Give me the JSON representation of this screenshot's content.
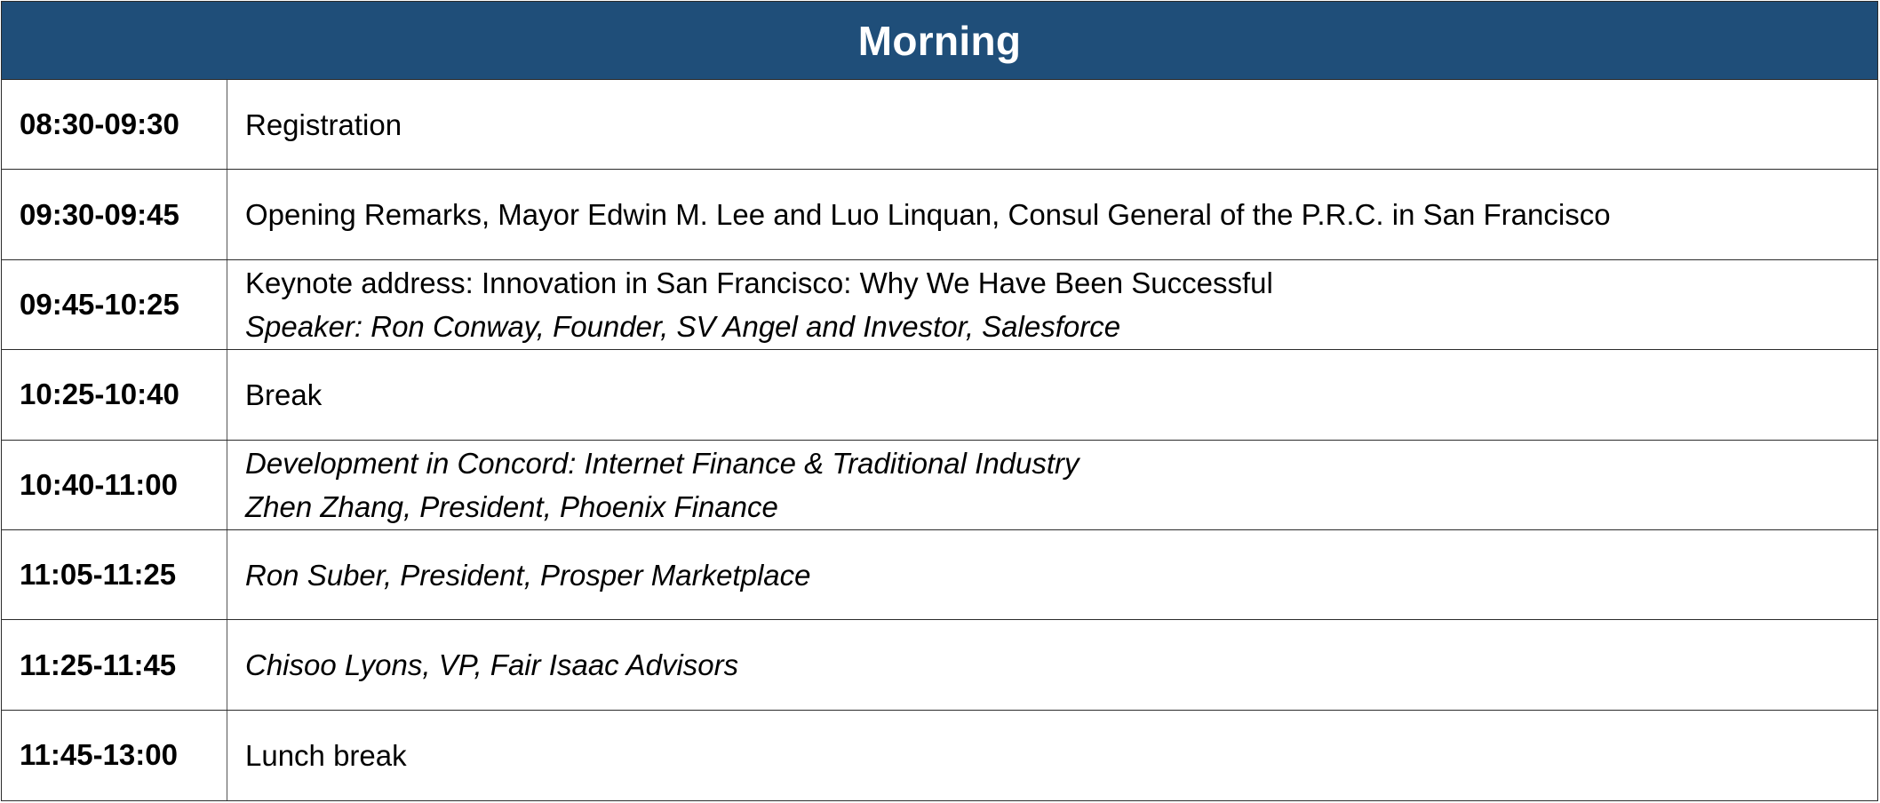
{
  "header": {
    "title": "Morning"
  },
  "colors": {
    "header_bg": "#1f4e79",
    "header_text": "#ffffff",
    "border": "#2b2b2b"
  },
  "rows": [
    {
      "time": "08:30-09:30",
      "line1": "Registration",
      "line1_italic": false,
      "line2": ""
    },
    {
      "time": "09:30-09:45",
      "line1": "Opening Remarks, Mayor Edwin M. Lee and Luo Linquan, Consul General of the P.R.C. in San Francisco",
      "line1_italic": false,
      "line2": ""
    },
    {
      "time": "09:45-10:25",
      "line1": "Keynote address: Innovation in San Francisco: Why We Have Been Successful",
      "line1_italic": false,
      "line2": "Speaker: Ron Conway, Founder, SV Angel and Investor, Salesforce"
    },
    {
      "time": "10:25-10:40",
      "line1": "Break",
      "line1_italic": false,
      "line2": ""
    },
    {
      "time": "10:40-11:00",
      "line1": "Development in Concord: Internet Finance & Traditional Industry",
      "line1_italic": true,
      "line2": "Zhen Zhang, President, Phoenix Finance"
    },
    {
      "time": "11:05-11:25",
      "line1": "Ron Suber, President, Prosper Marketplace",
      "line1_italic": true,
      "line2": ""
    },
    {
      "time": "11:25-11:45",
      "line1": "Chisoo Lyons, VP, Fair Isaac Advisors",
      "line1_italic": true,
      "line2": ""
    },
    {
      "time": "11:45-13:00",
      "line1": "Lunch break",
      "line1_italic": false,
      "line2": ""
    }
  ]
}
